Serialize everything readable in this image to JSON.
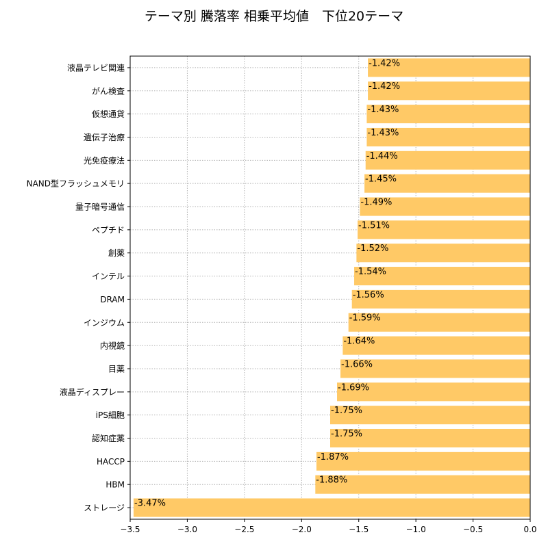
{
  "chart_data": {
    "type": "bar",
    "orientation": "horizontal",
    "title": "テーマ別 騰落率 相乗平均値　下位20テーマ",
    "xlabel": "",
    "ylabel": "",
    "xlim": [
      -3.5,
      0.0
    ],
    "xticks": [
      -3.5,
      -3.0,
      -2.5,
      -2.0,
      -1.5,
      -1.0,
      -0.5,
      0.0
    ],
    "xtick_labels": [
      "−3.5",
      "−3.0",
      "−2.5",
      "−2.0",
      "−1.5",
      "−1.0",
      "−0.5",
      "0.0"
    ],
    "grid": true,
    "bar_color": "#ffc966",
    "categories": [
      "液晶テレビ関連",
      "がん検査",
      "仮想通貨",
      "遺伝子治療",
      "光免疫療法",
      "NAND型フラッシュメモリ",
      "量子暗号通信",
      "ペプチド",
      "創薬",
      "インテル",
      "DRAM",
      "インジウム",
      "内視鏡",
      "目薬",
      "液晶ディスプレー",
      "iPS細胞",
      "認知症薬",
      "HACCP",
      "HBM",
      "ストレージ"
    ],
    "values": [
      -1.42,
      -1.42,
      -1.43,
      -1.43,
      -1.44,
      -1.45,
      -1.49,
      -1.51,
      -1.52,
      -1.54,
      -1.56,
      -1.59,
      -1.64,
      -1.66,
      -1.69,
      -1.75,
      -1.75,
      -1.87,
      -1.88,
      -3.47
    ],
    "data_labels": [
      "-1.42%",
      "-1.42%",
      "-1.43%",
      "-1.43%",
      "-1.44%",
      "-1.45%",
      "-1.49%",
      "-1.51%",
      "-1.52%",
      "-1.54%",
      "-1.56%",
      "-1.59%",
      "-1.64%",
      "-1.66%",
      "-1.69%",
      "-1.75%",
      "-1.75%",
      "-1.87%",
      "-1.88%",
      "-3.47%"
    ]
  }
}
